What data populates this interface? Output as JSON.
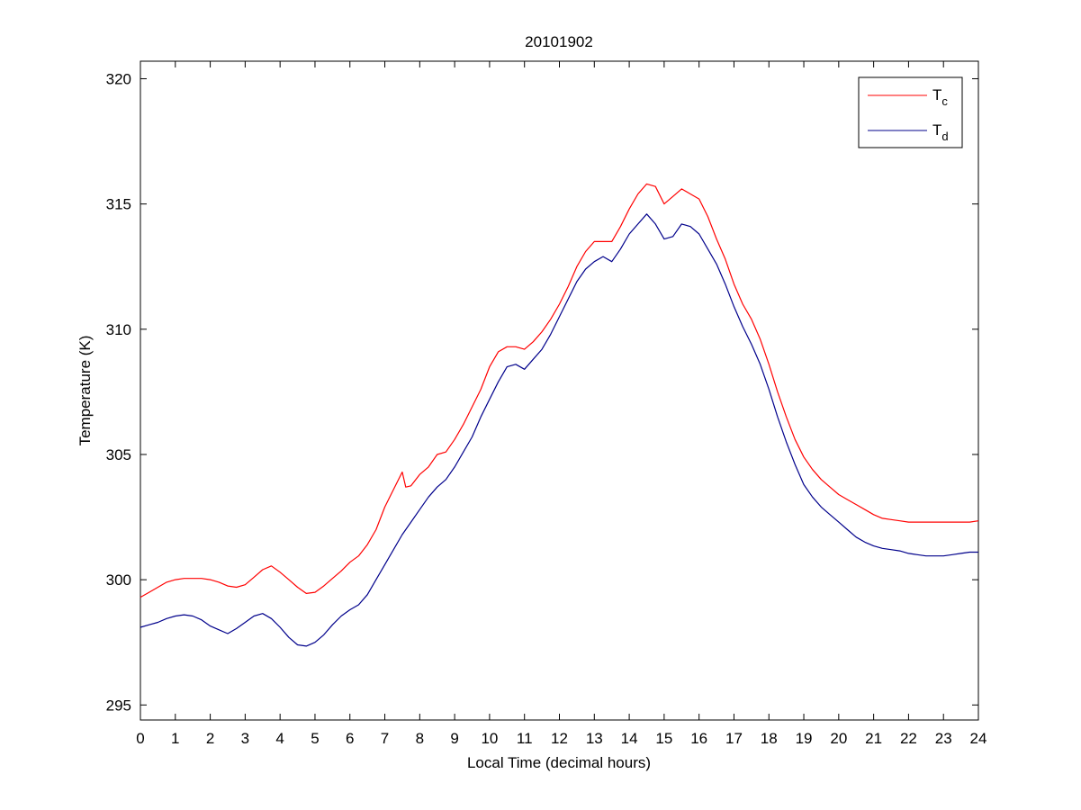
{
  "chart_data": {
    "type": "line",
    "title": "20101902",
    "xlabel": "Local Time (decimal hours)",
    "ylabel": "Temperature (K)",
    "xlim": [
      0,
      24
    ],
    "ylim": [
      294.4,
      320.7
    ],
    "xticks": [
      0,
      1,
      2,
      3,
      4,
      5,
      6,
      7,
      8,
      9,
      10,
      11,
      12,
      13,
      14,
      15,
      16,
      17,
      18,
      19,
      20,
      21,
      22,
      23,
      24
    ],
    "yticks": [
      295,
      300,
      305,
      310,
      315,
      320
    ],
    "grid": false,
    "legend_position": "top-right",
    "series": [
      {
        "name": "T",
        "subscript": "c",
        "color": "#ff0000",
        "x": [
          0,
          0.25,
          0.5,
          0.75,
          1,
          1.25,
          1.5,
          1.75,
          2,
          2.25,
          2.5,
          2.75,
          3,
          3.25,
          3.5,
          3.75,
          4,
          4.25,
          4.5,
          4.75,
          5,
          5.25,
          5.5,
          5.75,
          6,
          6.25,
          6.5,
          6.75,
          7,
          7.25,
          7.5,
          7.6,
          7.75,
          8,
          8.25,
          8.5,
          8.75,
          9,
          9.25,
          9.5,
          9.75,
          10,
          10.25,
          10.5,
          10.75,
          11,
          11.25,
          11.5,
          11.75,
          12,
          12.25,
          12.5,
          12.75,
          13,
          13.25,
          13.5,
          13.75,
          14,
          14.25,
          14.5,
          14.75,
          15,
          15.25,
          15.5,
          15.75,
          16,
          16.25,
          16.5,
          16.75,
          17,
          17.25,
          17.5,
          17.75,
          18,
          18.25,
          18.5,
          18.75,
          19,
          19.25,
          19.5,
          19.75,
          20,
          20.25,
          20.5,
          20.75,
          21,
          21.25,
          21.5,
          21.75,
          22,
          22.25,
          22.5,
          22.75,
          23,
          23.25,
          23.5,
          23.75,
          24
        ],
        "values": [
          299.3,
          299.5,
          299.7,
          299.9,
          300.0,
          300.05,
          300.05,
          300.05,
          300.0,
          299.9,
          299.75,
          299.7,
          299.8,
          300.1,
          300.4,
          300.55,
          300.3,
          300.0,
          299.7,
          299.45,
          299.5,
          299.75,
          300.05,
          300.35,
          300.7,
          300.95,
          301.4,
          302.0,
          302.9,
          303.6,
          304.3,
          303.7,
          303.75,
          304.2,
          304.5,
          305.0,
          305.1,
          305.6,
          306.2,
          306.9,
          307.6,
          308.5,
          309.1,
          309.3,
          309.3,
          309.2,
          309.5,
          309.9,
          310.4,
          311.0,
          311.7,
          312.5,
          313.1,
          313.5,
          313.5,
          313.5,
          314.1,
          314.8,
          315.4,
          315.8,
          315.7,
          315.0,
          315.3,
          315.6,
          315.4,
          315.2,
          314.5,
          313.6,
          312.8,
          311.8,
          311.0,
          310.4,
          309.6,
          308.6,
          307.5,
          306.5,
          305.6,
          304.9,
          304.4,
          304.0,
          303.7,
          303.4,
          303.2,
          303.0,
          302.8,
          302.6,
          302.45,
          302.4,
          302.35,
          302.3,
          302.3,
          302.3,
          302.3,
          302.3,
          302.3,
          302.3,
          302.3,
          302.35
        ]
      },
      {
        "name": "T",
        "subscript": "d",
        "color": "#00008b",
        "x": [
          0,
          0.25,
          0.5,
          0.75,
          1,
          1.25,
          1.5,
          1.75,
          2,
          2.25,
          2.5,
          2.75,
          3,
          3.25,
          3.5,
          3.75,
          4,
          4.25,
          4.5,
          4.75,
          5,
          5.25,
          5.5,
          5.75,
          6,
          6.25,
          6.5,
          6.75,
          7,
          7.25,
          7.5,
          7.75,
          8,
          8.25,
          8.5,
          8.75,
          9,
          9.25,
          9.5,
          9.75,
          10,
          10.25,
          10.5,
          10.75,
          11,
          11.25,
          11.5,
          11.75,
          12,
          12.25,
          12.5,
          12.75,
          13,
          13.25,
          13.5,
          13.75,
          14,
          14.25,
          14.5,
          14.75,
          15,
          15.25,
          15.5,
          15.75,
          16,
          16.25,
          16.5,
          16.75,
          17,
          17.25,
          17.5,
          17.75,
          18,
          18.25,
          18.5,
          18.75,
          19,
          19.25,
          19.5,
          19.75,
          20,
          20.25,
          20.5,
          20.75,
          21,
          21.25,
          21.5,
          21.75,
          22,
          22.25,
          22.5,
          22.75,
          23,
          23.25,
          23.5,
          23.75,
          24
        ],
        "values": [
          298.1,
          298.2,
          298.3,
          298.45,
          298.55,
          298.6,
          298.55,
          298.4,
          298.15,
          298.0,
          297.85,
          298.05,
          298.3,
          298.55,
          298.65,
          298.45,
          298.1,
          297.7,
          297.4,
          297.35,
          297.5,
          297.8,
          298.2,
          298.55,
          298.8,
          299.0,
          299.4,
          300.0,
          300.6,
          301.2,
          301.8,
          302.3,
          302.8,
          303.3,
          303.7,
          304.0,
          304.5,
          305.1,
          305.7,
          306.5,
          307.2,
          307.9,
          308.5,
          308.6,
          308.4,
          308.8,
          309.2,
          309.8,
          310.5,
          311.2,
          311.9,
          312.4,
          312.7,
          312.9,
          312.7,
          313.2,
          313.8,
          314.2,
          314.6,
          314.2,
          313.6,
          313.7,
          314.2,
          314.1,
          313.8,
          313.2,
          312.6,
          311.8,
          310.9,
          310.1,
          309.4,
          308.6,
          307.6,
          306.5,
          305.5,
          304.6,
          303.8,
          303.3,
          302.9,
          302.6,
          302.3,
          302.0,
          301.7,
          301.5,
          301.35,
          301.25,
          301.2,
          301.15,
          301.05,
          301.0,
          300.95,
          300.95,
          300.95,
          301.0,
          301.05,
          301.1,
          301.1
        ]
      }
    ]
  }
}
